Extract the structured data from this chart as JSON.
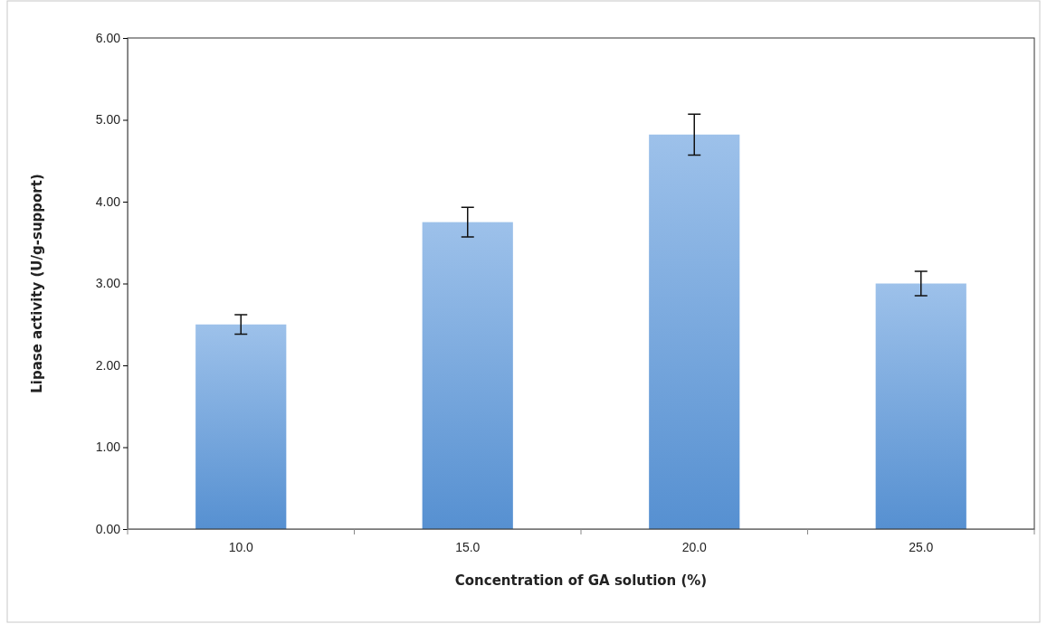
{
  "chart_data": {
    "type": "bar",
    "xlabel": "Concentration of GA solution (%)",
    "ylabel": "Lipase activity (U/g-support)",
    "categories": [
      "10.0",
      "15.0",
      "20.0",
      "25.0"
    ],
    "values": [
      2.5,
      3.75,
      4.82,
      3.0
    ],
    "errors": [
      0.12,
      0.18,
      0.25,
      0.15
    ],
    "color": "#5b98dc",
    "ylim": [
      0,
      6
    ],
    "yticks": [
      {
        "value": 0,
        "label": "0.00"
      },
      {
        "value": 1,
        "label": "1.00"
      },
      {
        "value": 2,
        "label": "2.00"
      },
      {
        "value": 3,
        "label": "3.00"
      },
      {
        "value": 4,
        "label": "4.00"
      },
      {
        "value": 5,
        "label": "5.00"
      },
      {
        "value": 6,
        "label": "6.00"
      }
    ],
    "grid": false
  }
}
